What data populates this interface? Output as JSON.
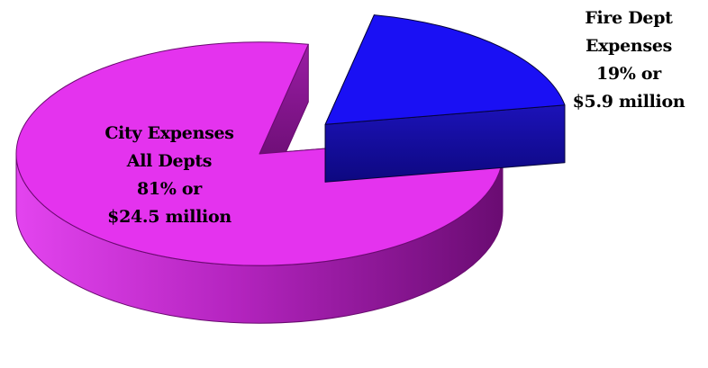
{
  "chart_data": {
    "type": "pie",
    "style": "3d-exploded",
    "title": "",
    "slices": [
      {
        "label_lines": [
          "City Expenses",
          "All Depts",
          "81% or",
          "$24.5 million"
        ],
        "percent": 81,
        "amount_million": 24.5,
        "color": "#e433ee"
      },
      {
        "label_lines": [
          "Fire Dept",
          "Expenses",
          "19% or",
          "$5.9 million"
        ],
        "percent": 19,
        "amount_million": 5.9,
        "color": "#1a10f4"
      }
    ]
  }
}
